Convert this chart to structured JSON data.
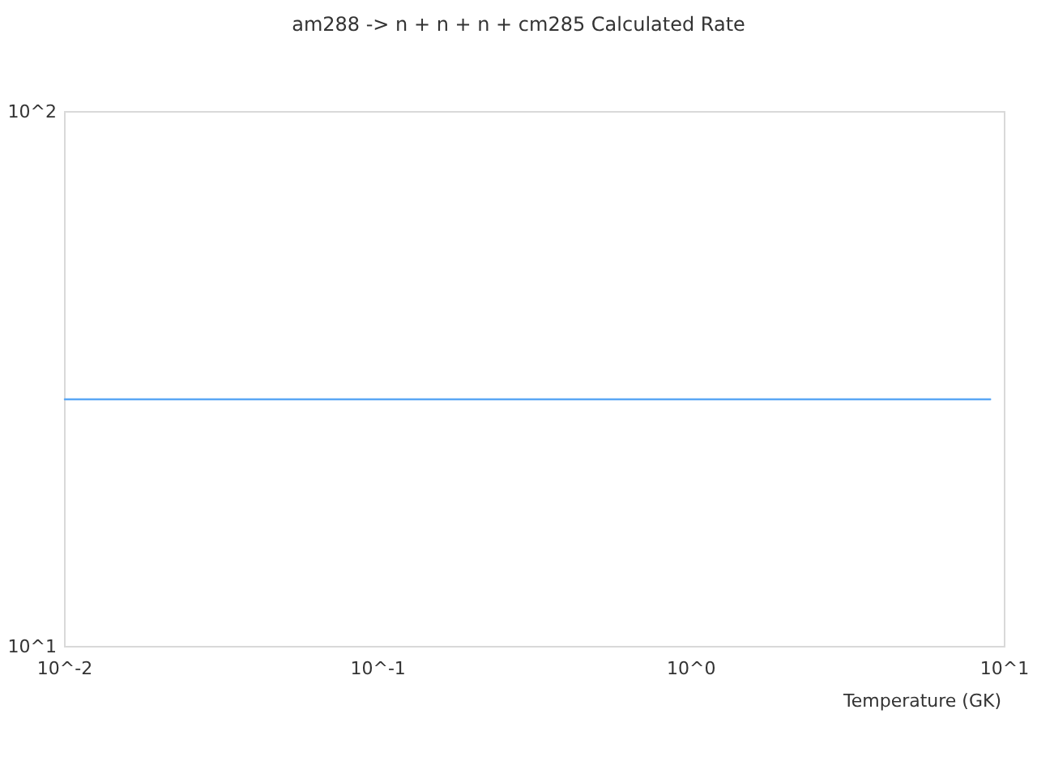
{
  "chart_data": {
    "type": "line",
    "title": "am288 -> n + n + n + cm285 Calculated Rate",
    "xlabel": "Temperature (GK)",
    "x": [
      0.01,
      9
    ],
    "series": [
      {
        "color": "#5ca8f5",
        "values": [
          29,
          29
        ]
      }
    ],
    "log": "xy",
    "xlim": [
      0.01,
      10
    ],
    "ylim": [
      10,
      100
    ],
    "xticks": [
      {
        "value": 0.01,
        "label": "10^-2"
      },
      {
        "value": 0.1,
        "label": "10^-1"
      },
      {
        "value": 1,
        "label": "10^0"
      },
      {
        "value": 10,
        "label": "10^1"
      }
    ],
    "yticks": [
      {
        "value": 10,
        "label": "10^1"
      },
      {
        "value": 100,
        "label": "10^2"
      }
    ],
    "grid": false,
    "marker": "none"
  }
}
